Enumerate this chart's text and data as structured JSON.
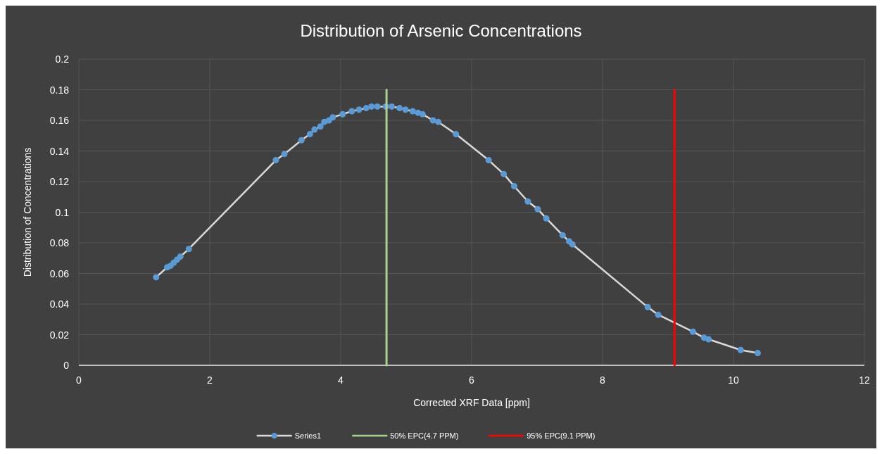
{
  "chart_data": {
    "type": "line",
    "title": "Distribution of Arsenic Concentrations",
    "xlabel": "Corrected XRF Data [ppm]",
    "ylabel": "Distribution of Concentrations",
    "xlim": [
      0,
      12
    ],
    "xticks": [
      0,
      2,
      4,
      6,
      8,
      10,
      12
    ],
    "ylim": [
      0,
      0.2
    ],
    "yticks": [
      0,
      0.02,
      0.04,
      0.06,
      0.08,
      0.1,
      0.12,
      0.14,
      0.16,
      0.18,
      0.2
    ],
    "grid": true,
    "legend": "bottom",
    "series": [
      {
        "name": "Series1",
        "color": "#5b9bd5",
        "marker": "circle",
        "x": [
          1.18,
          1.35,
          1.4,
          1.45,
          1.5,
          1.55,
          1.68,
          3.01,
          3.14,
          3.4,
          3.53,
          3.6,
          3.69,
          3.75,
          3.82,
          3.88,
          4.03,
          4.17,
          4.28,
          4.39,
          4.47,
          4.56,
          4.69,
          4.78,
          4.9,
          4.99,
          5.1,
          5.18,
          5.25,
          5.41,
          5.49,
          5.76,
          6.26,
          6.49,
          6.65,
          6.86,
          7.01,
          7.14,
          7.39,
          7.49,
          7.54,
          8.69,
          8.85,
          9.38,
          9.55,
          9.62,
          10.11,
          10.37
        ],
        "values": [
          0.0575,
          0.064,
          0.065,
          0.067,
          0.069,
          0.071,
          0.076,
          0.134,
          0.138,
          0.147,
          0.151,
          0.154,
          0.156,
          0.159,
          0.16,
          0.162,
          0.164,
          0.166,
          0.167,
          0.168,
          0.169,
          0.169,
          0.169,
          0.169,
          0.168,
          0.167,
          0.166,
          0.165,
          0.164,
          0.16,
          0.159,
          0.151,
          0.134,
          0.125,
          0.117,
          0.107,
          0.102,
          0.096,
          0.085,
          0.081,
          0.079,
          0.038,
          0.033,
          0.022,
          0.018,
          0.017,
          0.01,
          0.008
        ]
      },
      {
        "name": "50% EPC(4.7 PPM)",
        "color": "#a9d18e",
        "marker": "none",
        "x": [
          4.7,
          4.7
        ],
        "values": [
          0,
          0.18
        ]
      },
      {
        "name": "95% EPC(9.1 PPM)",
        "color": "#ff0000",
        "marker": "none",
        "x": [
          9.1,
          9.1
        ],
        "values": [
          0,
          0.18
        ]
      }
    ]
  }
}
